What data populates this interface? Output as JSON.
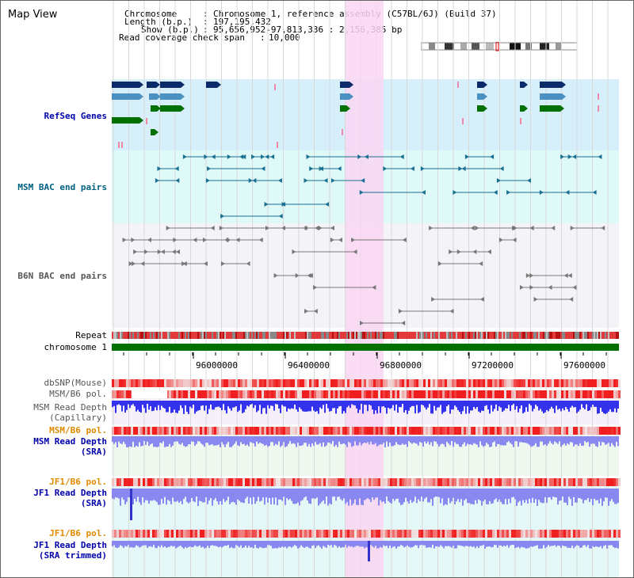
{
  "view": {
    "title": "Map View"
  },
  "header": {
    "chromosome_label": "Chromosome",
    "chromosome_value": "Chromosome 1, reference assembly (C57BL/6J) (Build 37)",
    "length_label": "Length (b.p.)",
    "length_value": "197,195,432",
    "show_label": "Show (b.p.)",
    "show_value": "95,656,952-97,813,336 : 2,156,385 bp",
    "coverage_label": "Read coverage check span",
    "coverage_value": "10,000"
  },
  "tracks": {
    "refseq": "RefSeq Genes",
    "msm_bac": "MSM BAC end pairs",
    "b6n_bac": "B6N BAC end pairs",
    "repeat": "Repeat",
    "chromosome": "chromosome 1",
    "dbsnp": "dbSNP(Mouse)",
    "msm_b6_pol_1": "MSM/B6 pol.",
    "msm_depth_cap_1": "MSM Read Depth",
    "msm_depth_cap_2": "(Capillary)",
    "msm_b6_pol_2": "MSM/B6 pol.",
    "msm_depth_sra_1": "MSM Read Depth",
    "msm_depth_sra_2": "(SRA)",
    "jf1_b6_pol_1": "JF1/B6 pol.",
    "jf1_depth_sra_1": "JF1 Read Depth",
    "jf1_depth_sra_2": "(SRA)",
    "jf1_b6_pol_2": "JF1/B6 pol.",
    "jf1_depth_trim_1": "JF1 Read Depth",
    "jf1_depth_trim_2": "(SRA trimmed)"
  },
  "axis": {
    "ticks": [
      "96000000",
      "96400000",
      "96800000",
      "97200000",
      "97600000"
    ]
  },
  "colors": {
    "refseq_bg": "#d6effa",
    "msm_bac_bg": "#dff9f9",
    "b6n_bg": "#f4f4f8",
    "highlight": "#f9d6f2",
    "chromosome": "#007000",
    "depth_blue": "#3333ee",
    "depth_light": "#8888f0"
  }
}
